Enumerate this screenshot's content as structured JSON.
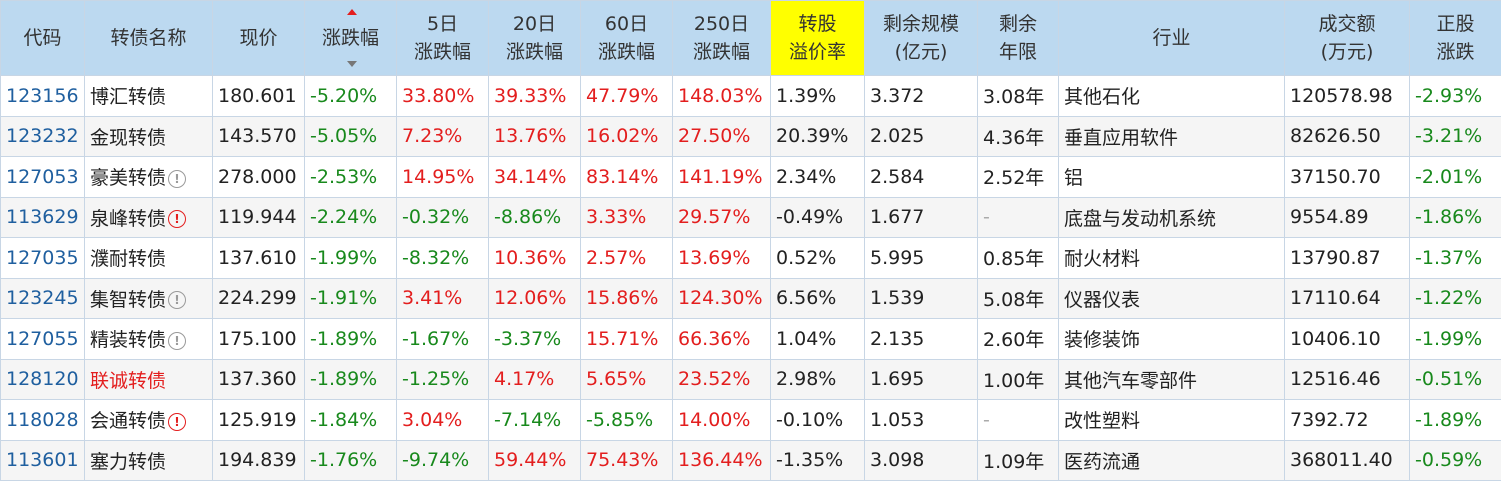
{
  "headers": [
    {
      "key": "code",
      "lines": [
        "代码"
      ]
    },
    {
      "key": "name",
      "lines": [
        "转债名称"
      ]
    },
    {
      "key": "price",
      "lines": [
        "现价"
      ]
    },
    {
      "key": "chg",
      "lines": [
        "涨跌幅"
      ]
    },
    {
      "key": "chg5",
      "lines": [
        "5日",
        "涨跌幅"
      ]
    },
    {
      "key": "chg20",
      "lines": [
        "20日",
        "涨跌幅"
      ]
    },
    {
      "key": "chg60",
      "lines": [
        "60日",
        "涨跌幅"
      ]
    },
    {
      "key": "chg250",
      "lines": [
        "250日",
        "涨跌幅"
      ]
    },
    {
      "key": "premium",
      "lines": [
        "转股",
        "溢价率"
      ]
    },
    {
      "key": "scale",
      "lines": [
        "剩余规模",
        "(亿元)"
      ]
    },
    {
      "key": "years",
      "lines": [
        "剩余",
        "年限"
      ]
    },
    {
      "key": "industry",
      "lines": [
        "行业"
      ]
    },
    {
      "key": "volume",
      "lines": [
        "成交额",
        "(万元)"
      ]
    },
    {
      "key": "stock_chg",
      "lines": [
        "正股",
        "涨跌"
      ]
    }
  ],
  "rows": [
    {
      "code": "123156",
      "name": "博汇转债",
      "name_red": false,
      "icon": "",
      "price": "180.601",
      "chg": "-5.20%",
      "chg5": "33.80%",
      "chg20": "39.33%",
      "chg60": "47.79%",
      "chg250": "148.03%",
      "premium": "1.39%",
      "scale": "3.372",
      "years": "3.08年",
      "industry": "其他石化",
      "volume": "120578.98",
      "stock_chg": "-2.93%"
    },
    {
      "code": "123232",
      "name": "金现转债",
      "name_red": false,
      "icon": "",
      "price": "143.570",
      "chg": "-5.05%",
      "chg5": "7.23%",
      "chg20": "13.76%",
      "chg60": "16.02%",
      "chg250": "27.50%",
      "premium": "20.39%",
      "scale": "2.025",
      "years": "4.36年",
      "industry": "垂直应用软件",
      "volume": "82626.50",
      "stock_chg": "-3.21%"
    },
    {
      "code": "127053",
      "name": "豪美转债",
      "name_red": false,
      "icon": "info",
      "price": "278.000",
      "chg": "-2.53%",
      "chg5": "14.95%",
      "chg20": "34.14%",
      "chg60": "83.14%",
      "chg250": "141.19%",
      "premium": "2.34%",
      "scale": "2.584",
      "years": "2.52年",
      "industry": "铝",
      "volume": "37150.70",
      "stock_chg": "-2.01%"
    },
    {
      "code": "113629",
      "name": "泉峰转债",
      "name_red": false,
      "icon": "warn",
      "price": "119.944",
      "chg": "-2.24%",
      "chg5": "-0.32%",
      "chg20": "-8.86%",
      "chg60": "3.33%",
      "chg250": "29.57%",
      "premium": "-0.49%",
      "scale": "1.677",
      "years": "-",
      "industry": "底盘与发动机系统",
      "volume": "9554.89",
      "stock_chg": "-1.86%"
    },
    {
      "code": "127035",
      "name": "濮耐转债",
      "name_red": false,
      "icon": "",
      "price": "137.610",
      "chg": "-1.99%",
      "chg5": "-8.32%",
      "chg20": "10.36%",
      "chg60": "2.57%",
      "chg250": "13.69%",
      "premium": "0.52%",
      "scale": "5.995",
      "years": "0.85年",
      "industry": "耐火材料",
      "volume": "13790.87",
      "stock_chg": "-1.37%"
    },
    {
      "code": "123245",
      "name": "集智转债",
      "name_red": false,
      "icon": "info",
      "price": "224.299",
      "chg": "-1.91%",
      "chg5": "3.41%",
      "chg20": "12.06%",
      "chg60": "15.86%",
      "chg250": "124.30%",
      "premium": "6.56%",
      "scale": "1.539",
      "years": "5.08年",
      "industry": "仪器仪表",
      "volume": "17110.64",
      "stock_chg": "-1.22%"
    },
    {
      "code": "127055",
      "name": "精装转债",
      "name_red": false,
      "icon": "info",
      "price": "175.100",
      "chg": "-1.89%",
      "chg5": "-1.67%",
      "chg20": "-3.37%",
      "chg60": "15.71%",
      "chg250": "66.36%",
      "premium": "1.04%",
      "scale": "2.135",
      "years": "2.60年",
      "industry": "装修装饰",
      "volume": "10406.10",
      "stock_chg": "-1.99%"
    },
    {
      "code": "128120",
      "name": "联诚转债",
      "name_red": true,
      "icon": "",
      "price": "137.360",
      "chg": "-1.89%",
      "chg5": "-1.25%",
      "chg20": "4.17%",
      "chg60": "5.65%",
      "chg250": "23.52%",
      "premium": "2.98%",
      "scale": "1.695",
      "years": "1.00年",
      "industry": "其他汽车零部件",
      "volume": "12516.46",
      "stock_chg": "-0.51%"
    },
    {
      "code": "118028",
      "name": "会通转债",
      "name_red": false,
      "icon": "warn",
      "price": "125.919",
      "chg": "-1.84%",
      "chg5": "3.04%",
      "chg20": "-7.14%",
      "chg60": "-5.85%",
      "chg250": "14.00%",
      "premium": "-0.10%",
      "scale": "1.053",
      "years": "-",
      "industry": "改性塑料",
      "volume": "7392.72",
      "stock_chg": "-1.89%"
    },
    {
      "code": "113601",
      "name": "塞力转债",
      "name_red": false,
      "icon": "",
      "price": "194.839",
      "chg": "-1.76%",
      "chg5": "-9.74%",
      "chg20": "59.44%",
      "chg60": "75.43%",
      "chg250": "136.44%",
      "premium": "-1.35%",
      "scale": "3.098",
      "years": "1.09年",
      "industry": "医药流通",
      "volume": "368011.40",
      "stock_chg": "-0.59%"
    }
  ],
  "colors": {
    "header_bg": "#bcd9f0",
    "highlight": "#ffff00",
    "up": "#e31e1e",
    "down": "#18891c",
    "code": "#1f5f9f"
  }
}
